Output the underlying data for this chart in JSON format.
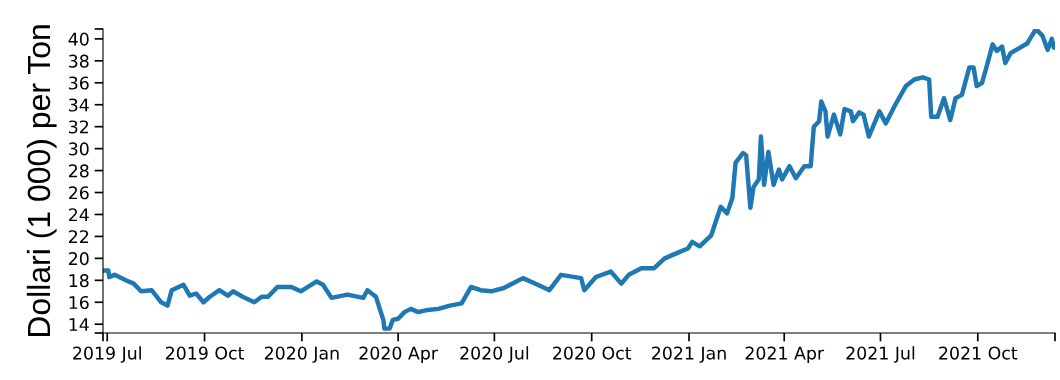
{
  "chart_data": {
    "type": "line",
    "ylabel": "Dollari (1 000) per Ton",
    "grid": false,
    "marker": "none",
    "line_style": "solid",
    "xlim": [
      "2019-06-27",
      "2021-12-13"
    ],
    "ylim": [
      13.2,
      40.9
    ],
    "xticks": [
      {
        "value": "2019-06-27",
        "label": null
      },
      {
        "value": "2019-07-01",
        "label": "2019 Jul"
      },
      {
        "value": "2019-10-01",
        "label": "2019 Oct"
      },
      {
        "value": "2020-01-01",
        "label": "2020 Jan"
      },
      {
        "value": "2020-04-01",
        "label": "2020 Apr"
      },
      {
        "value": "2020-07-01",
        "label": "2020 Jul"
      },
      {
        "value": "2020-10-01",
        "label": "2020 Oct"
      },
      {
        "value": "2021-01-01",
        "label": "2021 Jan"
      },
      {
        "value": "2021-04-01",
        "label": "2021 Apr"
      },
      {
        "value": "2021-07-01",
        "label": "2021 Jul"
      },
      {
        "value": "2021-10-01",
        "label": "2021 Oct"
      },
      {
        "value": "2021-12-13",
        "label": null
      }
    ],
    "yticks": [
      {
        "value": 13.2,
        "label": null
      },
      14,
      16,
      18,
      20,
      22,
      24,
      26,
      28,
      30,
      32,
      34,
      36,
      38,
      40,
      {
        "value": 40.9,
        "label": null
      }
    ],
    "series": [
      {
        "color": "#1f77b4",
        "x": [
          "2019-06-28",
          "2019-07-02",
          "2019-07-03",
          "2019-07-08",
          "2019-07-21",
          "2019-07-26",
          "2019-08-02",
          "2019-08-12",
          "2019-08-21",
          "2019-08-27",
          "2019-08-31",
          "2019-09-11",
          "2019-09-17",
          "2019-09-23",
          "2019-09-30",
          "2019-10-06",
          "2019-10-15",
          "2019-10-23",
          "2019-10-28",
          "2019-11-06",
          "2019-11-17",
          "2019-11-24",
          "2019-11-30",
          "2019-12-09",
          "2019-12-22",
          "2019-12-31",
          "2020-01-15",
          "2020-01-21",
          "2020-01-29",
          "2020-02-13",
          "2020-02-28",
          "2020-03-03",
          "2020-03-11",
          "2020-03-18",
          "2020-03-19",
          "2020-03-24",
          "2020-03-27",
          "2020-04-01",
          "2020-04-07",
          "2020-04-13",
          "2020-04-20",
          "2020-04-29",
          "2020-05-09",
          "2020-05-20",
          "2020-05-31",
          "2020-06-09",
          "2020-06-18",
          "2020-06-28",
          "2020-07-10",
          "2020-07-28",
          "2020-08-11",
          "2020-08-22",
          "2020-09-02",
          "2020-09-21",
          "2020-09-24",
          "2020-10-05",
          "2020-10-19",
          "2020-10-29",
          "2020-11-05",
          "2020-11-17",
          "2020-11-29",
          "2020-12-09",
          "2020-12-21",
          "2020-12-31",
          "2021-01-04",
          "2021-01-11",
          "2021-01-22",
          "2021-01-31",
          "2021-02-06",
          "2021-02-11",
          "2021-02-14",
          "2021-02-21",
          "2021-02-24",
          "2021-02-28",
          "2021-03-03",
          "2021-03-08",
          "2021-03-10",
          "2021-03-13",
          "2021-03-17",
          "2021-03-22",
          "2021-03-27",
          "2021-03-30",
          "2021-04-06",
          "2021-04-12",
          "2021-04-20",
          "2021-04-26",
          "2021-04-29",
          "2021-05-04",
          "2021-05-06",
          "2021-05-10",
          "2021-05-12",
          "2021-05-18",
          "2021-05-24",
          "2021-05-28",
          "2021-06-03",
          "2021-06-05",
          "2021-06-11",
          "2021-06-15",
          "2021-06-20",
          "2021-06-30",
          "2021-07-06",
          "2021-07-15",
          "2021-07-25",
          "2021-08-02",
          "2021-08-10",
          "2021-08-16",
          "2021-08-18",
          "2021-08-24",
          "2021-08-30",
          "2021-09-05",
          "2021-09-10",
          "2021-09-16",
          "2021-09-23",
          "2021-09-27",
          "2021-09-30",
          "2021-10-05",
          "2021-10-10",
          "2021-10-15",
          "2021-10-19",
          "2021-10-24",
          "2021-10-27",
          "2021-11-01",
          "2021-11-10",
          "2021-11-17",
          "2021-11-18",
          "2021-11-25",
          "2021-12-01",
          "2021-12-06",
          "2021-12-10",
          "2021-12-12"
        ],
        "values": [
          18.9,
          18.9,
          18.3,
          18.5,
          17.9,
          17.7,
          17.0,
          17.1,
          16.0,
          15.7,
          17.1,
          17.6,
          16.6,
          16.8,
          16.0,
          16.5,
          17.1,
          16.6,
          17.0,
          16.5,
          16.0,
          16.5,
          16.5,
          17.4,
          17.4,
          17.0,
          17.9,
          17.6,
          16.4,
          16.7,
          16.4,
          17.1,
          16.5,
          14.4,
          13.6,
          13.6,
          14.4,
          14.5,
          15.1,
          15.4,
          15.1,
          15.3,
          15.4,
          15.7,
          15.9,
          17.4,
          17.1,
          17.0,
          17.3,
          18.2,
          17.6,
          17.1,
          18.5,
          18.2,
          17.1,
          18.3,
          18.8,
          17.7,
          18.5,
          19.1,
          19.1,
          20.0,
          20.5,
          20.9,
          21.5,
          21.1,
          22.1,
          24.7,
          24.1,
          25.5,
          28.7,
          29.6,
          29.4,
          24.6,
          26.5,
          27.2,
          31.1,
          26.7,
          29.7,
          26.7,
          28.1,
          27.2,
          28.4,
          27.3,
          28.4,
          28.4,
          32.0,
          32.5,
          34.3,
          33.4,
          31.1,
          33.1,
          31.3,
          33.6,
          33.4,
          32.5,
          33.3,
          33.1,
          31.1,
          33.4,
          32.3,
          34.0,
          35.7,
          36.3,
          36.5,
          36.3,
          32.9,
          32.9,
          34.6,
          32.6,
          34.6,
          34.9,
          37.4,
          37.4,
          35.7,
          36.0,
          37.7,
          39.5,
          38.9,
          39.3,
          37.8,
          38.7,
          39.2,
          39.6,
          39.8,
          40.9,
          40.3,
          39.0,
          40.0,
          39.2
        ]
      }
    ]
  }
}
